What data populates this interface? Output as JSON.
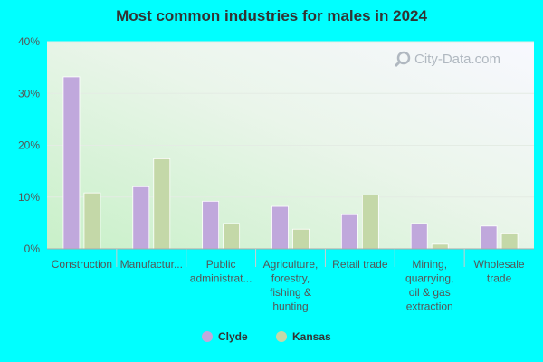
{
  "chart_data": {
    "type": "bar",
    "title": "Most common industries for males in 2024",
    "categories": [
      [
        "Construction"
      ],
      [
        "Manufactur..."
      ],
      [
        "Public",
        "administrat..."
      ],
      [
        "Agriculture,",
        "forestry,",
        "fishing &",
        "hunting"
      ],
      [
        "Retail trade"
      ],
      [
        "Mining,",
        "quarrying,",
        "oil & gas",
        "extraction"
      ],
      [
        "Wholesale",
        "trade"
      ]
    ],
    "series": [
      {
        "name": "Clyde",
        "color": "#c0a8dc",
        "values": [
          33.2,
          12.0,
          9.2,
          8.2,
          6.6,
          4.9,
          4.4
        ]
      },
      {
        "name": "Kansas",
        "color": "#c4d8a8",
        "values": [
          10.8,
          17.4,
          4.9,
          3.8,
          10.4,
          0.9,
          2.9
        ]
      }
    ],
    "ylim": [
      0,
      40
    ],
    "yticks": [
      "0%",
      "10%",
      "20%",
      "30%",
      "40%"
    ],
    "ytick_values": [
      0,
      10,
      20,
      30,
      40
    ],
    "legend_position": "bottom-center",
    "grid": true
  },
  "watermark": {
    "text": "City-Data.com",
    "icon": "magnifier-icon"
  }
}
